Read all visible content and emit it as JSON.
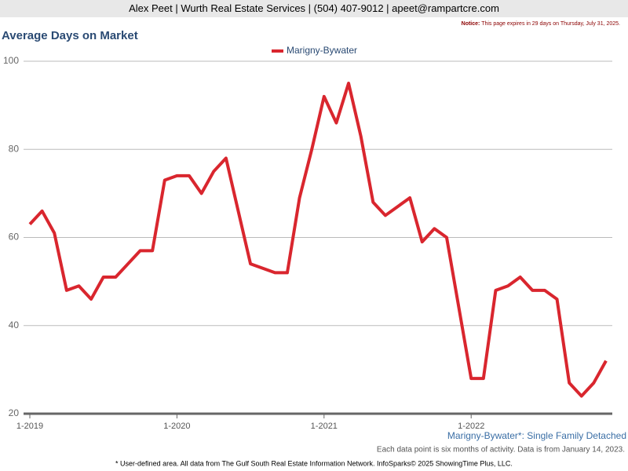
{
  "header": "Alex Peet | Wurth Real Estate Services | (504) 407-9012 | apeet@rampartcre.com",
  "notice": {
    "label": "Notice:",
    "text": "This page expires in 29 days on Thursday, July 31, 2025."
  },
  "footer": "* User-defined area. All data from The Gulf South Real Estate Information Network. InfoSparks© 2025 ShowingTime Plus, LLC.",
  "chart_data": {
    "type": "line",
    "title": "Average Days on Market",
    "subtitle": "Marigny-Bywater*: Single Family Detached",
    "note": "Each data point is six months of activity. Data is from January 14, 2023.",
    "categories": [
      "1-2019",
      null,
      null,
      null,
      null,
      null,
      null,
      null,
      null,
      null,
      null,
      null,
      "1-2020",
      null,
      null,
      null,
      null,
      null,
      null,
      null,
      null,
      null,
      null,
      null,
      "1-2021",
      null,
      null,
      null,
      null,
      null,
      null,
      null,
      null,
      null,
      null,
      null,
      "1-2022",
      null,
      null,
      null,
      null,
      null,
      null,
      null,
      null,
      null,
      null,
      null
    ],
    "series": [
      {
        "name": "Marigny-Bywater",
        "color": "#d9262e",
        "values": [
          63,
          66,
          61,
          48,
          49,
          46,
          51,
          51,
          54,
          57,
          57,
          73,
          74,
          74,
          70,
          75,
          78,
          66,
          54,
          53,
          52,
          52,
          69,
          80,
          92,
          86,
          95,
          83,
          68,
          65,
          67,
          69,
          59,
          62,
          60,
          44,
          28,
          28,
          48,
          49,
          51,
          48,
          48,
          46,
          27,
          24,
          27,
          32
        ]
      }
    ],
    "ylim": [
      20,
      100
    ],
    "yticks": [
      20,
      40,
      60,
      80,
      100
    ],
    "grid": true
  }
}
